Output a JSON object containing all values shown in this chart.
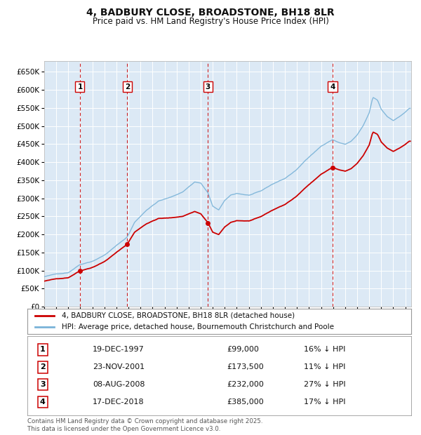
{
  "title": "4, BADBURY CLOSE, BROADSTONE, BH18 8LR",
  "subtitle": "Price paid vs. HM Land Registry's House Price Index (HPI)",
  "ylim": [
    0,
    680000
  ],
  "yticks": [
    0,
    50000,
    100000,
    150000,
    200000,
    250000,
    300000,
    350000,
    400000,
    450000,
    500000,
    550000,
    600000,
    650000
  ],
  "xlim_start": 1995.0,
  "xlim_end": 2025.5,
  "bg_color": "#dce9f5",
  "grid_color": "#ffffff",
  "hpi_color": "#7ab3d8",
  "price_color": "#cc0000",
  "vline_color": "#cc0000",
  "transactions": [
    {
      "date_val": 1997.97,
      "price": 99000,
      "label": "1"
    },
    {
      "date_val": 2001.9,
      "price": 173500,
      "label": "2"
    },
    {
      "date_val": 2008.6,
      "price": 232000,
      "label": "3"
    },
    {
      "date_val": 2018.96,
      "price": 385000,
      "label": "4"
    }
  ],
  "legend_line1": "4, BADBURY CLOSE, BROADSTONE, BH18 8LR (detached house)",
  "legend_line2": "HPI: Average price, detached house, Bournemouth Christchurch and Poole",
  "table_rows": [
    {
      "num": "1",
      "date": "19-DEC-1997",
      "price": "£99,000",
      "pct": "16% ↓ HPI"
    },
    {
      "num": "2",
      "date": "23-NOV-2001",
      "price": "£173,500",
      "pct": "11% ↓ HPI"
    },
    {
      "num": "3",
      "date": "08-AUG-2008",
      "price": "£232,000",
      "pct": "27% ↓ HPI"
    },
    {
      "num": "4",
      "date": "17-DEC-2018",
      "price": "£385,000",
      "pct": "17% ↓ HPI"
    }
  ],
  "footer": "Contains HM Land Registry data © Crown copyright and database right 2025.\nThis data is licensed under the Open Government Licence v3.0.",
  "hpi_waypoints": [
    [
      1995.0,
      83000
    ],
    [
      1996.0,
      90000
    ],
    [
      1997.0,
      95000
    ],
    [
      1997.97,
      118000
    ],
    [
      1999.0,
      128000
    ],
    [
      2000.0,
      145000
    ],
    [
      2001.9,
      195000
    ],
    [
      2002.5,
      235000
    ],
    [
      2003.5,
      270000
    ],
    [
      2004.5,
      295000
    ],
    [
      2005.5,
      305000
    ],
    [
      2006.5,
      320000
    ],
    [
      2007.5,
      348000
    ],
    [
      2008.0,
      345000
    ],
    [
      2008.6,
      318000
    ],
    [
      2009.0,
      280000
    ],
    [
      2009.5,
      270000
    ],
    [
      2010.0,
      295000
    ],
    [
      2010.5,
      310000
    ],
    [
      2011.0,
      315000
    ],
    [
      2012.0,
      310000
    ],
    [
      2013.0,
      320000
    ],
    [
      2014.0,
      340000
    ],
    [
      2015.0,
      355000
    ],
    [
      2016.0,
      380000
    ],
    [
      2017.0,
      415000
    ],
    [
      2018.0,
      445000
    ],
    [
      2018.96,
      463000
    ],
    [
      2019.5,
      455000
    ],
    [
      2020.0,
      450000
    ],
    [
      2020.5,
      458000
    ],
    [
      2021.0,
      475000
    ],
    [
      2021.5,
      500000
    ],
    [
      2022.0,
      535000
    ],
    [
      2022.3,
      578000
    ],
    [
      2022.7,
      570000
    ],
    [
      2023.0,
      545000
    ],
    [
      2023.5,
      525000
    ],
    [
      2024.0,
      515000
    ],
    [
      2024.5,
      525000
    ],
    [
      2025.0,
      538000
    ],
    [
      2025.33,
      548000
    ]
  ]
}
